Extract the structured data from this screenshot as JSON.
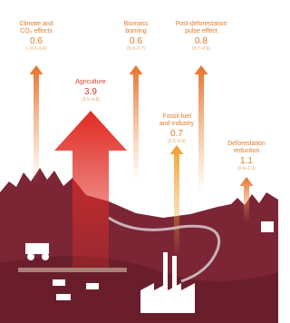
{
  "arrows": [
    {
      "label": [
        "Climate and",
        "CO₂ effects"
      ],
      "value": "0.6",
      "range": "(−0.3–1.4)"
    },
    {
      "label": [
        "Agriculture"
      ],
      "value": "3.9",
      "range": "(3.0–4.8)"
    },
    {
      "label": [
        "Biomass",
        "burning"
      ],
      "value": "0.6",
      "range": "(0.5–0.7)"
    },
    {
      "label": [
        "Post-deforestation",
        "pulse effect"
      ],
      "value": "0.8",
      "range": "(0.7–0.9)"
    },
    {
      "label": [
        "Fossil fuel",
        "and industry"
      ],
      "value": "0.7",
      "range": "(0.6–0.9)"
    },
    {
      "label": [
        "Deforestation",
        "reduction"
      ],
      "value": "1.1",
      "range": "(0.9–1.2)"
    }
  ]
}
